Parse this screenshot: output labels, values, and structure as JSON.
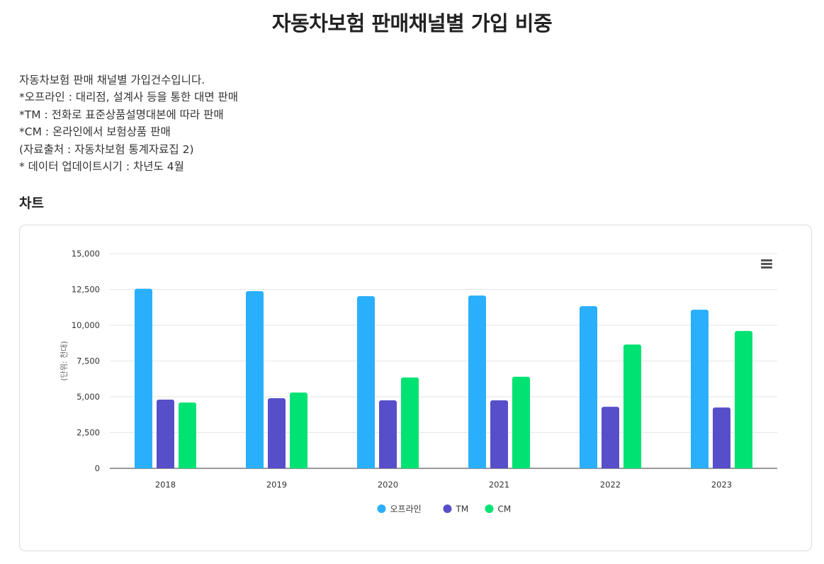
{
  "page": {
    "title": "자동차보험 판매채널별 가입 비중",
    "description": [
      "자동차보험 판매 채널별 가입건수입니다.",
      " *오프라인 : 대리점, 설계사 등을 통한 대면 판매",
      " *TM : 전화로 표준상품설명대본에 따라 판매",
      " *CM : 온라인에서 보험상품 판매",
      "(자료출처 : 자동차보험 통계자료집 2)",
      "* 데이터 업데이트시기 : 차년도 4월"
    ],
    "section_title": "차트"
  },
  "chart_menu": {
    "icon": "hamburger-menu-icon"
  },
  "chart_data": {
    "type": "bar",
    "categories": [
      "2018",
      "2019",
      "2020",
      "2021",
      "2022",
      "2023"
    ],
    "series": [
      {
        "name": "오프라인",
        "color": "#2aaffc",
        "values": [
          12550,
          12380,
          12030,
          12070,
          11330,
          11080
        ]
      },
      {
        "name": "TM",
        "color": "#574fc9",
        "values": [
          4800,
          4900,
          4750,
          4750,
          4300,
          4250
        ]
      },
      {
        "name": "CM",
        "color": "#00e272",
        "values": [
          4600,
          5300,
          6350,
          6400,
          8650,
          9600
        ]
      }
    ],
    "ylabel": "(단위: 천대)",
    "ylim": [
      0,
      15000
    ],
    "yticks": [
      "0",
      "2,500",
      "5,000",
      "7,500",
      "10,000",
      "12,500",
      "15,000"
    ],
    "grid": true,
    "legend_position": "bottom-center"
  }
}
